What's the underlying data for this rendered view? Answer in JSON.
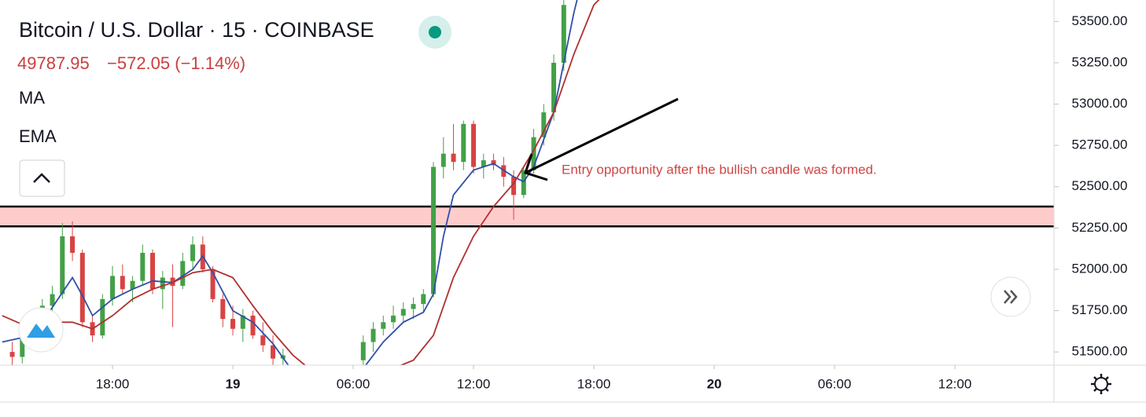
{
  "chart_data": {
    "type": "candlestick",
    "title": "Bitcoin / U.S. Dollar · 15 · COINBASE",
    "price": "49787.95",
    "change": "−572.05 (−1.14%)",
    "indicators": [
      "MA",
      "EMA"
    ],
    "annotation": "Entry opportunity after the bullish candle was formed.",
    "up_color": "#43a047",
    "down_color": "#d84343",
    "xlim": [
      12.39,
      64.94
    ],
    "xticks": [
      {
        "value": 18,
        "label": "18:00"
      },
      {
        "value": 24,
        "label": "19"
      },
      {
        "value": 30,
        "label": "06:00"
      },
      {
        "value": 36,
        "label": "12:00"
      },
      {
        "value": 42,
        "label": "18:00"
      },
      {
        "value": 48,
        "label": "20"
      },
      {
        "value": 54,
        "label": "06:00"
      },
      {
        "value": 60,
        "label": "12:00"
      }
    ],
    "ylim": [
      51420,
      53630
    ],
    "yticks": [
      {
        "value": 51500,
        "label": "51500.00"
      },
      {
        "value": 51750,
        "label": "51750.00"
      },
      {
        "value": 52000,
        "label": "52000.00"
      },
      {
        "value": 52250,
        "label": "52250.00"
      },
      {
        "value": 52500,
        "label": "52500.00"
      },
      {
        "value": 52750,
        "label": "52750.00"
      },
      {
        "value": 53000,
        "label": "53000.00"
      },
      {
        "value": 53250,
        "label": "53250.00"
      },
      {
        "value": 53500,
        "label": "53500.00"
      }
    ],
    "zone": {
      "top": 52380,
      "bottom": 52260,
      "color": "#ffcccc"
    },
    "candles": {
      "x": [
        13.0,
        13.5,
        14.0,
        14.5,
        15.0,
        15.5,
        16.0,
        16.5,
        17.0,
        17.5,
        18.0,
        18.5,
        19.0,
        19.5,
        20.0,
        20.5,
        21.0,
        21.5,
        22.0,
        22.5,
        23.0,
        23.5,
        24.0,
        24.5,
        25.0,
        25.5,
        26.0,
        26.5,
        30.5,
        31.0,
        31.5,
        32.0,
        32.5,
        33.0,
        33.5,
        34.0,
        34.5,
        35.0,
        35.5,
        36.0,
        36.5,
        37.0,
        37.5,
        38.0,
        38.5,
        39.0,
        39.5,
        40.0,
        40.5
      ],
      "open": [
        51500,
        51470,
        51580,
        51650,
        51780,
        51850,
        52200,
        52100,
        51680,
        51600,
        51820,
        51960,
        51880,
        51930,
        52100,
        51880,
        51950,
        51900,
        52050,
        52150,
        52000,
        51820,
        51700,
        51640,
        51720,
        51600,
        51540,
        51460,
        51450,
        51560,
        51640,
        51680,
        51720,
        51760,
        51790,
        51850,
        52620,
        52700,
        52650,
        52880,
        52620,
        52660,
        52630,
        52560,
        52450,
        52600,
        52800,
        52950,
        53250
      ],
      "high": [
        51560,
        51600,
        51700,
        51820,
        51900,
        52280,
        52290,
        52120,
        51720,
        51850,
        52020,
        52030,
        51960,
        52150,
        52120,
        51990,
        52030,
        52100,
        52200,
        52200,
        52020,
        51850,
        51780,
        51760,
        51750,
        51680,
        51600,
        51520,
        51600,
        51680,
        51720,
        51780,
        51800,
        51830,
        51880,
        52650,
        52800,
        52880,
        52900,
        52900,
        52700,
        52700,
        52680,
        52600,
        52620,
        52850,
        53000,
        53300,
        53630
      ],
      "low": [
        51420,
        51430,
        51540,
        51600,
        51700,
        51820,
        52050,
        51650,
        51560,
        51580,
        51780,
        51850,
        51800,
        51900,
        51850,
        51760,
        51650,
        51880,
        52000,
        51980,
        51800,
        51650,
        51600,
        51560,
        51580,
        51500,
        51420,
        51420,
        51420,
        51500,
        51600,
        51640,
        51680,
        51700,
        51740,
        51830,
        52550,
        52600,
        52600,
        52580,
        52550,
        52600,
        52500,
        52300,
        52430,
        52580,
        52750,
        52900,
        53200
      ],
      "close": [
        51470,
        51580,
        51650,
        51780,
        51850,
        52200,
        52100,
        51680,
        51600,
        51820,
        51960,
        51880,
        51930,
        52100,
        51880,
        51950,
        51900,
        52050,
        52150,
        52000,
        51820,
        51700,
        51640,
        51720,
        51600,
        51540,
        51460,
        51480,
        51560,
        51640,
        51680,
        51720,
        51760,
        51790,
        51850,
        52620,
        52700,
        52650,
        52880,
        52620,
        52660,
        52630,
        52560,
        52450,
        52600,
        52800,
        52950,
        53250,
        53600
      ]
    },
    "series": [
      {
        "name": "MA",
        "color": "#2f4fa8",
        "x": [
          12.5,
          14,
          15,
          16,
          16.5,
          17,
          18,
          19,
          20,
          21,
          22,
          22.5,
          23,
          24,
          25,
          26,
          27,
          28,
          29,
          30.5,
          31.5,
          32.5,
          33.5,
          34,
          34.5,
          35,
          36,
          37,
          38,
          38.5,
          39,
          40,
          41,
          41.3
        ],
        "values": [
          51560,
          51600,
          51770,
          51950,
          51840,
          51720,
          51820,
          51880,
          51930,
          51920,
          52000,
          52080,
          51980,
          51750,
          51680,
          51550,
          51380,
          51350,
          51380,
          51400,
          51560,
          51680,
          51740,
          51850,
          52200,
          52450,
          52600,
          52640,
          52560,
          52530,
          52620,
          52950,
          53550,
          53700
        ]
      },
      {
        "name": "EMA",
        "color": "#b03030",
        "x": [
          12.5,
          14,
          15,
          16,
          17,
          18,
          19,
          20,
          21,
          22,
          23,
          24,
          25,
          26,
          27,
          28,
          30,
          31,
          32,
          33,
          34,
          35,
          36,
          37,
          38,
          39,
          40,
          41,
          42,
          42.8
        ],
        "values": [
          51720,
          51640,
          51680,
          51680,
          51640,
          51720,
          51820,
          51880,
          51920,
          51980,
          52000,
          51950,
          51780,
          51620,
          51480,
          51380,
          51360,
          51360,
          51400,
          51450,
          51600,
          51950,
          52200,
          52380,
          52520,
          52720,
          52950,
          53300,
          53600,
          53700
        ]
      }
    ]
  }
}
